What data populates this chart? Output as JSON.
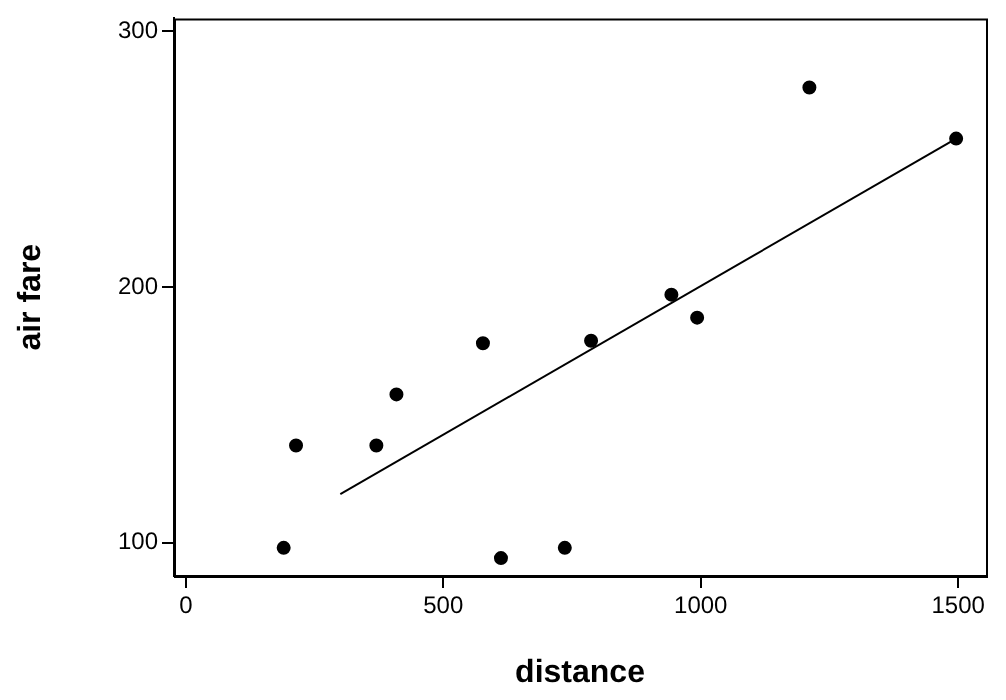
{
  "chart_data": {
    "type": "scatter",
    "xlabel": "distance",
    "ylabel": "air fare",
    "xlim": [
      -23,
      1554
    ],
    "ylim": [
      87,
      305
    ],
    "xticks": [
      0,
      500,
      1000,
      1500
    ],
    "yticks": [
      100,
      200,
      300
    ],
    "grid": false,
    "legend": false,
    "marker": "circle",
    "series": [
      {
        "color": "#000000",
        "x": [
          190,
          214,
          370,
          409,
          577,
          612,
          736,
          787,
          943,
          993,
          1211,
          1496
        ],
        "values": [
          98,
          138,
          138,
          158,
          178,
          94,
          98,
          179,
          197,
          188,
          278,
          258
        ]
      },
      {
        "type": "line",
        "color": "#000000",
        "marker": "none",
        "line_style": "solid",
        "x": [
          300,
          1496
        ],
        "values": [
          119,
          258
        ]
      }
    ]
  }
}
